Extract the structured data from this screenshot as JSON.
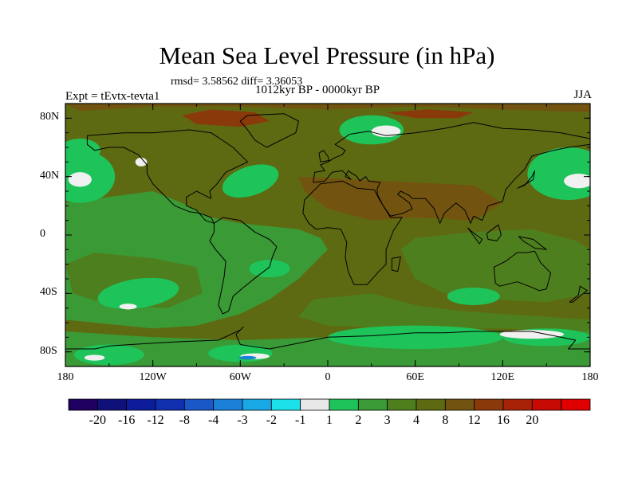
{
  "title": "Mean Sea Level Pressure (in hPa)",
  "stats": "rmsd= 3.58562 diff= 3.36053",
  "left_label": "Expt = tEvtx-tevta1",
  "center_label": "1012kyr BP - 0000kyr BP",
  "right_label": "JJA",
  "lat_labels": [
    "80N",
    "40N",
    "0",
    "40S",
    "80S"
  ],
  "lat_values": [
    80,
    40,
    0,
    -40,
    -80
  ],
  "lon_labels": [
    "180",
    "120W",
    "60W",
    "0",
    "60E",
    "120E",
    "180"
  ],
  "lon_values": [
    -180,
    -120,
    -60,
    0,
    60,
    120,
    180
  ],
  "colorbar": {
    "colors": [
      "#200060",
      "#10107a",
      "#0c1c9a",
      "#1030b0",
      "#1a58c8",
      "#1a80d8",
      "#18a8e6",
      "#1ce0ea",
      "#e8e8e8",
      "#1ec45a",
      "#3a9a36",
      "#4e7f1e",
      "#5e6a12",
      "#725410",
      "#8a3a0a",
      "#a82208",
      "#c80a04",
      "#e00000"
    ],
    "labels": [
      "-20",
      "-16",
      "-12",
      "-8",
      "-4",
      "-3",
      "-2",
      "-1",
      "1",
      "2",
      "3",
      "4",
      "8",
      "12",
      "16",
      "20"
    ]
  },
  "fields": {
    "background": "#5e6a12",
    "mid_green": "#3a9a36",
    "olive": "#4e7f1e",
    "bright_green": "#1ec45a",
    "brown": "#725410",
    "white": "#f0f0f0",
    "blue": "#1a80d8"
  }
}
